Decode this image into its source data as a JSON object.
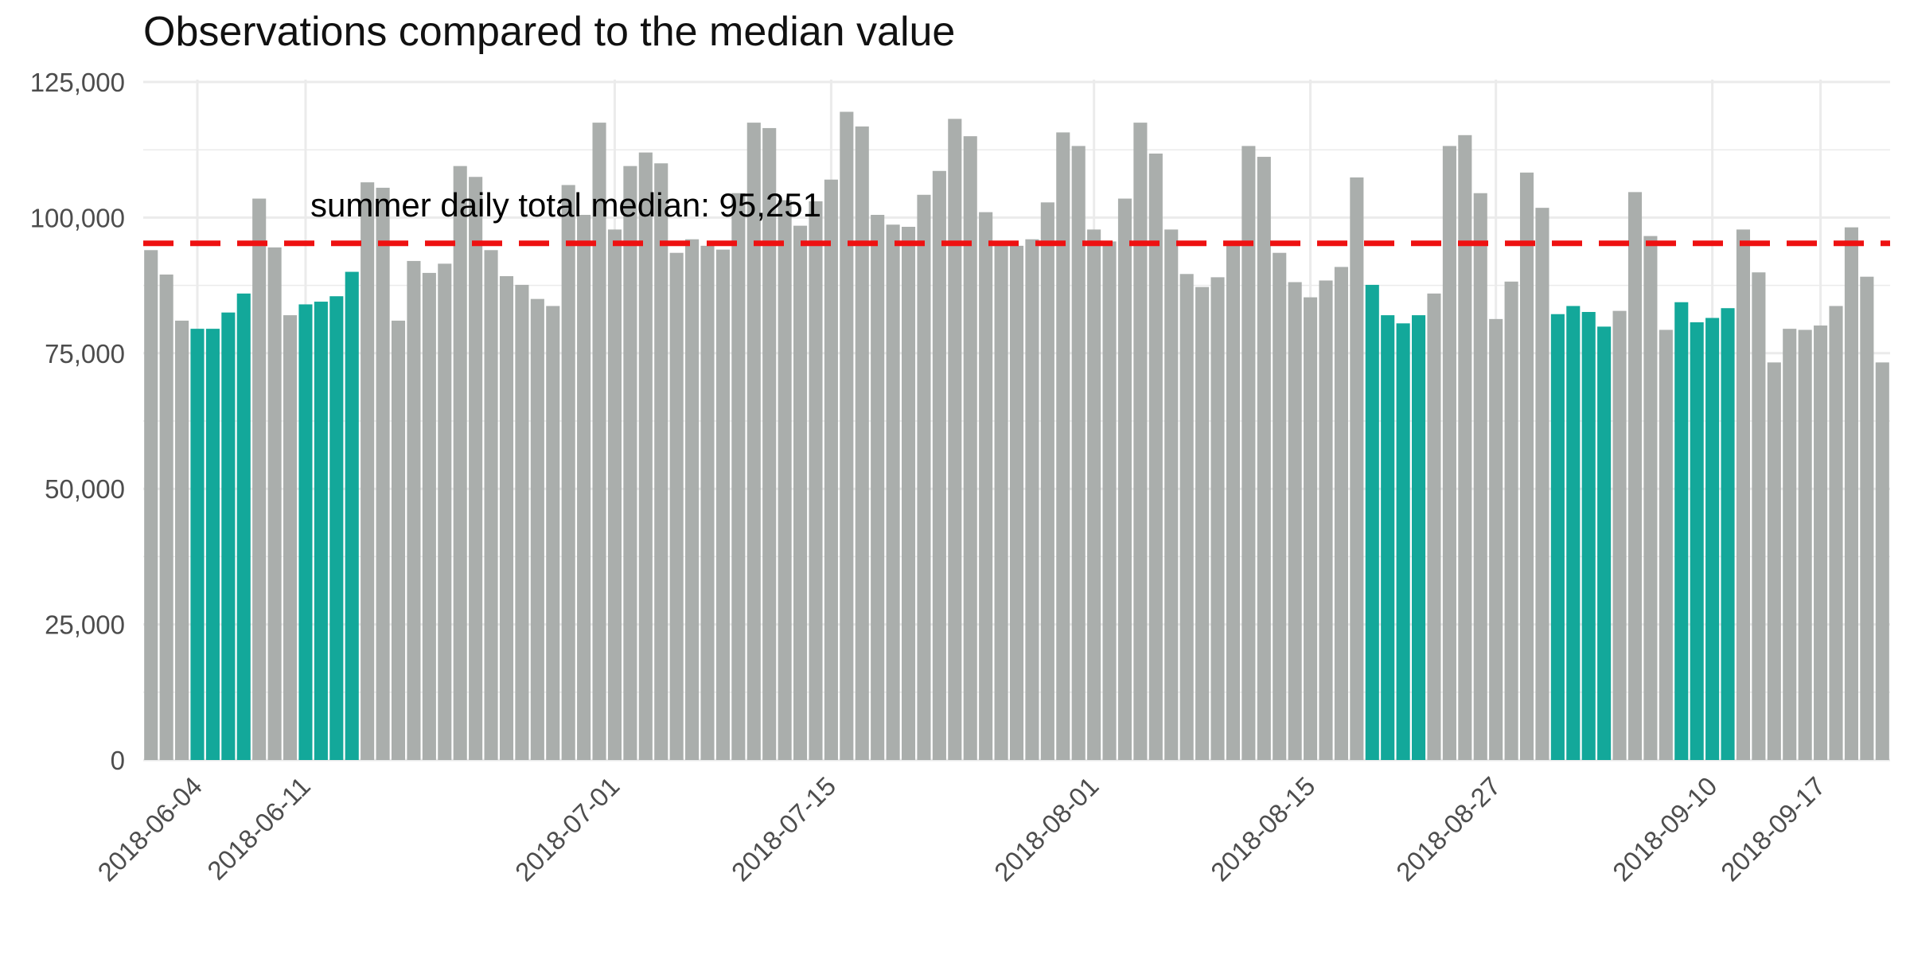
{
  "chart_data": {
    "type": "bar",
    "title": "Observations compared to the median value",
    "xlabel": "",
    "ylabel": "",
    "ylim": [
      0,
      125000
    ],
    "y_ticks": [
      {
        "value": 0,
        "label": "0"
      },
      {
        "value": 25000,
        "label": "25,000"
      },
      {
        "value": 50000,
        "label": "50,000"
      },
      {
        "value": 75000,
        "label": "75,000"
      },
      {
        "value": 100000,
        "label": "100,000"
      },
      {
        "value": 125000,
        "label": "125,000"
      }
    ],
    "start_date": "2018-06-01",
    "x_ticks": [
      {
        "date": "2018-06-04",
        "label": "2018-06-04"
      },
      {
        "date": "2018-06-11",
        "label": "2018-06-11"
      },
      {
        "date": "2018-07-01",
        "label": "2018-07-01"
      },
      {
        "date": "2018-07-15",
        "label": "2018-07-15"
      },
      {
        "date": "2018-08-01",
        "label": "2018-08-01"
      },
      {
        "date": "2018-08-15",
        "label": "2018-08-15"
      },
      {
        "date": "2018-08-27",
        "label": "2018-08-27"
      },
      {
        "date": "2018-09-10",
        "label": "2018-09-10"
      },
      {
        "date": "2018-09-17",
        "label": "2018-09-17"
      }
    ],
    "values": [
      94000,
      89500,
      81000,
      79500,
      79500,
      82500,
      86000,
      103500,
      94500,
      82000,
      84000,
      84500,
      85500,
      90000,
      106500,
      105500,
      81000,
      92000,
      89800,
      91500,
      109500,
      107500,
      94000,
      89200,
      87600,
      85000,
      83700,
      106000,
      100500,
      117500,
      97800,
      109500,
      112000,
      110000,
      93500,
      96000,
      94800,
      94100,
      104500,
      117500,
      116500,
      103200,
      98500,
      103000,
      107000,
      119500,
      116800,
      100500,
      98700,
      98300,
      104200,
      108600,
      118200,
      115000,
      101000,
      95300,
      94800,
      96000,
      102800,
      115700,
      113200,
      97800,
      95600,
      103500,
      117500,
      111800,
      97800,
      89600,
      87200,
      89000,
      95400,
      113200,
      111200,
      93500,
      88100,
      85300,
      88400,
      90900,
      107400,
      87600,
      82000,
      80500,
      82000,
      86000,
      113200,
      115200,
      104500,
      81300,
      88200,
      108300,
      101800,
      82200,
      83700,
      82600,
      79900,
      82800,
      104700,
      96600,
      79300,
      84400,
      80700,
      81500,
      83300,
      97800,
      89900,
      73300,
      79500,
      79300,
      80100,
      83700,
      98200,
      89100,
      73300
    ],
    "highlight": [
      false,
      false,
      false,
      true,
      true,
      true,
      true,
      false,
      false,
      false,
      true,
      true,
      true,
      true,
      false,
      false,
      false,
      false,
      false,
      false,
      false,
      false,
      false,
      false,
      false,
      false,
      false,
      false,
      false,
      false,
      false,
      false,
      false,
      false,
      false,
      false,
      false,
      false,
      false,
      false,
      false,
      false,
      false,
      false,
      false,
      false,
      false,
      false,
      false,
      false,
      false,
      false,
      false,
      false,
      false,
      false,
      false,
      false,
      false,
      false,
      false,
      false,
      false,
      false,
      false,
      false,
      false,
      false,
      false,
      false,
      false,
      false,
      false,
      false,
      false,
      false,
      false,
      false,
      false,
      true,
      true,
      true,
      true,
      false,
      false,
      false,
      false,
      false,
      false,
      false,
      false,
      true,
      true,
      true,
      true,
      false,
      false,
      false,
      false,
      true,
      true,
      true,
      true,
      false,
      false,
      false,
      false,
      false,
      false,
      false,
      false,
      false,
      false
    ],
    "median": 95251,
    "annotation": "summer daily total median: 95,251",
    "colors": {
      "bar": "#aaaeac",
      "highlight": "#13a89a",
      "median_line": "#ee1111",
      "grid": "#ebebeb",
      "tick_text": "#4d4d4d"
    },
    "grid": true,
    "legend": "none"
  }
}
